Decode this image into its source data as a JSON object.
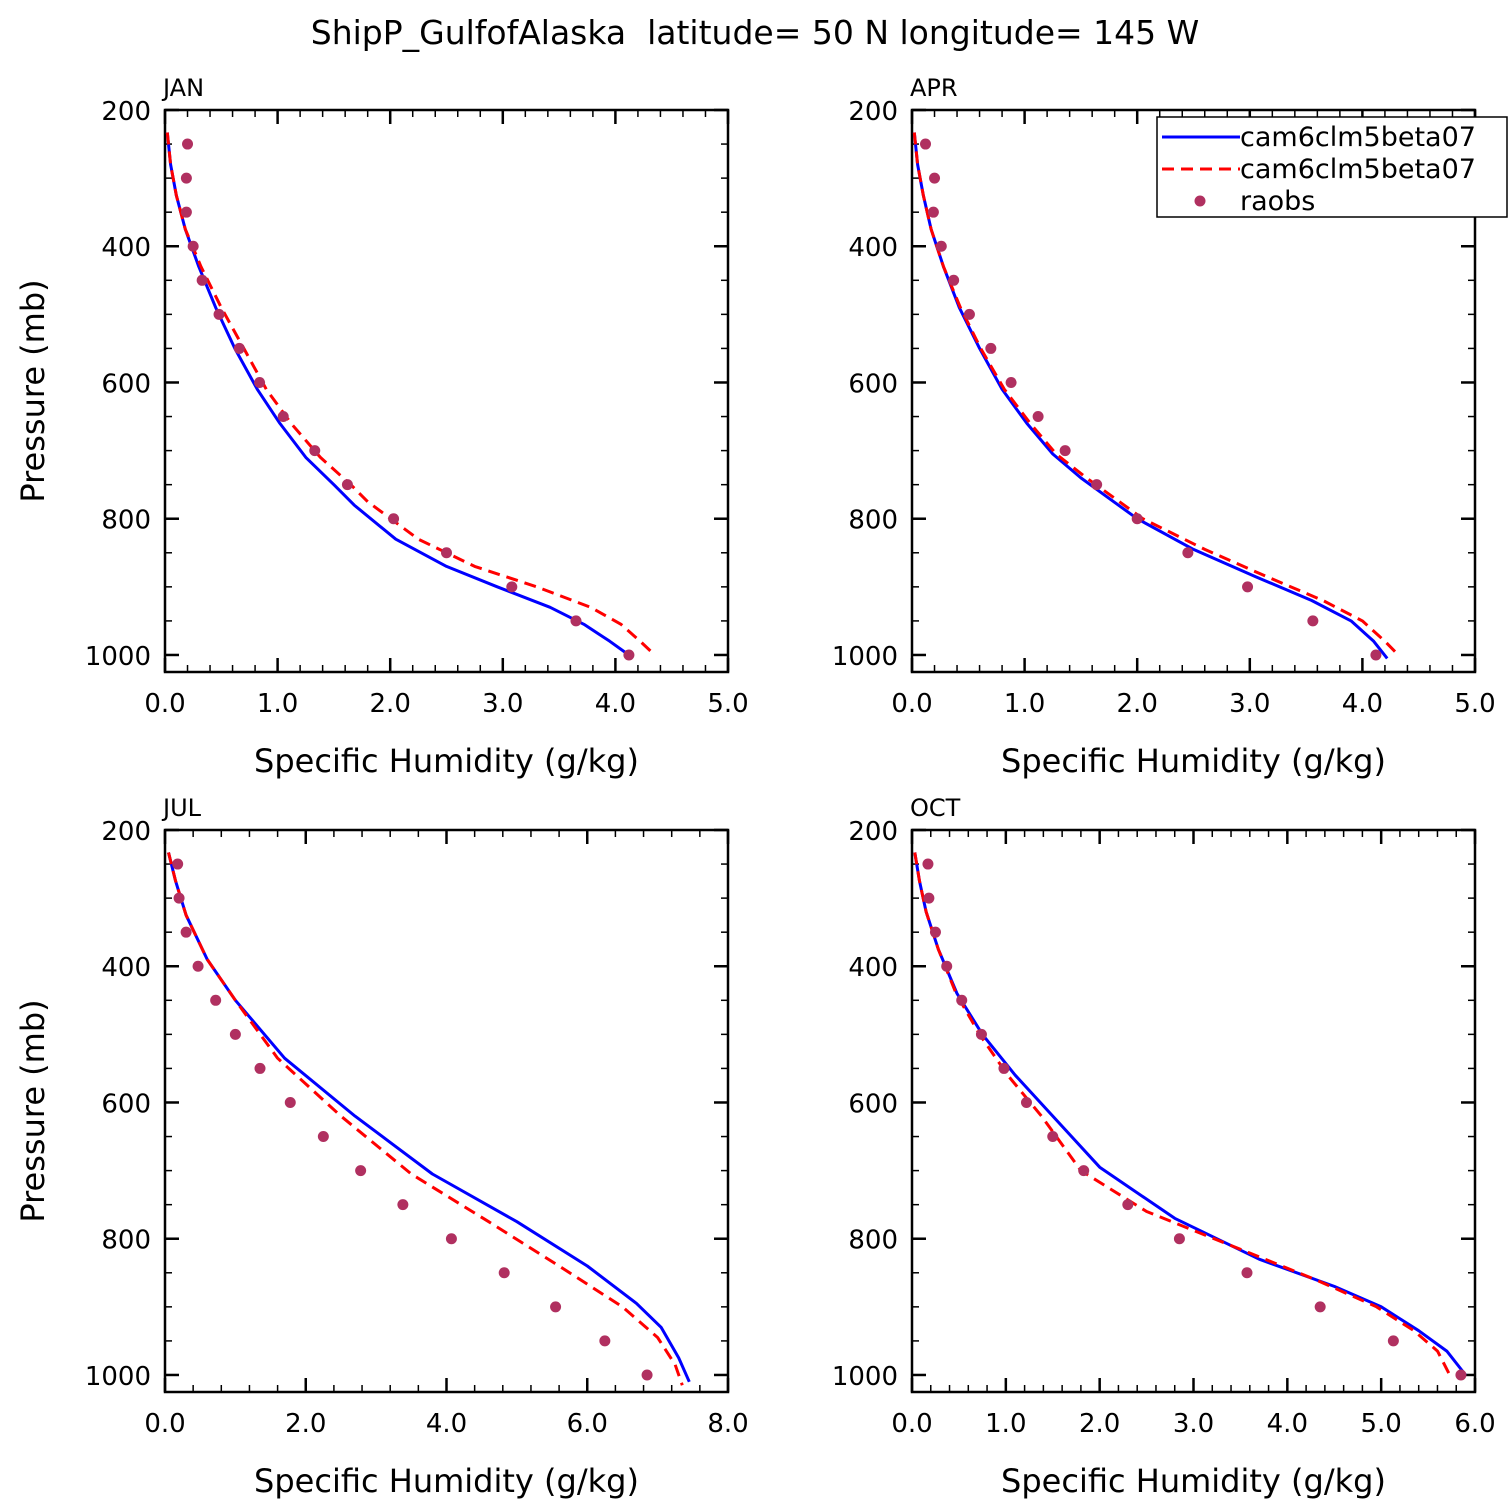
{
  "title": "ShipP_GulfofAlaska  latitude= 50 N longitude= 145 W",
  "legend": {
    "placement": "top-right of APR panel",
    "entries": [
      {
        "label": "cam6clm5beta07",
        "style": "solid",
        "color": "#0000ff"
      },
      {
        "label": "cam6clm5beta07",
        "style": "dashed",
        "color": "#ff0000"
      },
      {
        "label": "raobs",
        "style": "dot",
        "color": "#b03060"
      }
    ]
  },
  "chart_data": [
    {
      "type": "line",
      "title": "JAN",
      "xlabel": "Specific Humidity (g/kg)",
      "ylabel": "Pressure (mb)",
      "xlim": [
        0,
        5
      ],
      "ylim": [
        200,
        1025
      ],
      "y_inverted": true,
      "xticks": [
        "0.0",
        "1.0",
        "2.0",
        "3.0",
        "4.0",
        "5.0"
      ],
      "yticks": [
        "200",
        "400",
        "600",
        "800",
        "1000"
      ],
      "series": [
        {
          "name": "cam6clm5beta07",
          "style": "solid",
          "color": "#0000ff",
          "x": [
            0.02,
            0.05,
            0.1,
            0.18,
            0.3,
            0.45,
            0.62,
            0.82,
            1.02,
            1.25,
            1.5,
            1.68,
            2.05,
            2.5,
            2.95,
            3.42,
            3.72,
            3.95,
            4.12
          ],
          "y": [
            233,
            280,
            325,
            375,
            430,
            490,
            550,
            610,
            660,
            710,
            750,
            780,
            830,
            870,
            900,
            930,
            955,
            980,
            1000
          ]
        },
        {
          "name": "cam6clm5beta07",
          "style": "dashed",
          "color": "#ff0000",
          "x": [
            0.02,
            0.05,
            0.1,
            0.18,
            0.32,
            0.5,
            0.7,
            0.9,
            1.12,
            1.38,
            1.65,
            1.8,
            2.25,
            2.75,
            3.3,
            3.78,
            4.05,
            4.22,
            4.35
          ],
          "y": [
            233,
            280,
            325,
            375,
            430,
            490,
            550,
            610,
            660,
            710,
            750,
            775,
            830,
            870,
            900,
            930,
            955,
            980,
            1000
          ]
        },
        {
          "name": "raobs",
          "style": "dot",
          "color": "#b03060",
          "x": [
            0.2,
            0.19,
            0.19,
            0.25,
            0.33,
            0.48,
            0.66,
            0.84,
            1.05,
            1.33,
            1.62,
            2.03,
            2.5,
            3.08,
            3.65,
            4.12
          ],
          "y": [
            250,
            300,
            350,
            400,
            450,
            500,
            550,
            600,
            650,
            700,
            750,
            800,
            850,
            900,
            950,
            1000
          ]
        }
      ]
    },
    {
      "type": "line",
      "title": "APR",
      "xlabel": "Specific Humidity (g/kg)",
      "ylabel": "",
      "xlim": [
        0,
        5
      ],
      "ylim": [
        200,
        1025
      ],
      "y_inverted": true,
      "xticks": [
        "0.0",
        "1.0",
        "2.0",
        "3.0",
        "4.0",
        "5.0"
      ],
      "yticks": [
        "200",
        "400",
        "600",
        "800",
        "1000"
      ],
      "series": [
        {
          "name": "cam6clm5beta07",
          "style": "solid",
          "color": "#0000ff",
          "x": [
            0.02,
            0.05,
            0.1,
            0.17,
            0.28,
            0.42,
            0.6,
            0.8,
            1.02,
            1.25,
            1.5,
            1.75,
            2.0,
            2.5,
            3.05,
            3.55,
            3.9,
            4.1,
            4.22
          ],
          "y": [
            233,
            280,
            325,
            375,
            430,
            490,
            550,
            610,
            660,
            705,
            740,
            770,
            800,
            845,
            885,
            920,
            950,
            980,
            1005
          ]
        },
        {
          "name": "cam6clm5beta07",
          "style": "dashed",
          "color": "#ff0000",
          "x": [
            0.02,
            0.05,
            0.1,
            0.17,
            0.28,
            0.43,
            0.61,
            0.82,
            1.05,
            1.28,
            1.55,
            1.8,
            2.05,
            2.6,
            3.15,
            3.65,
            4.0,
            4.2,
            4.32
          ],
          "y": [
            233,
            280,
            325,
            375,
            430,
            490,
            550,
            610,
            660,
            705,
            740,
            770,
            800,
            845,
            885,
            920,
            950,
            980,
            1000
          ]
        },
        {
          "name": "raobs",
          "style": "dot",
          "color": "#b03060",
          "x": [
            0.12,
            0.2,
            0.19,
            0.26,
            0.37,
            0.51,
            0.7,
            0.88,
            1.12,
            1.36,
            1.64,
            2.0,
            2.45,
            2.98,
            3.56,
            4.12
          ],
          "y": [
            250,
            300,
            350,
            400,
            450,
            500,
            550,
            600,
            650,
            700,
            750,
            800,
            850,
            900,
            950,
            1000
          ]
        }
      ]
    },
    {
      "type": "line",
      "title": "JUL",
      "xlabel": "Specific Humidity (g/kg)",
      "ylabel": "Pressure (mb)",
      "xlim": [
        0,
        8
      ],
      "ylim": [
        200,
        1025
      ],
      "y_inverted": true,
      "xticks": [
        "0.0",
        "2.0",
        "4.0",
        "6.0",
        "8.0"
      ],
      "yticks": [
        "200",
        "400",
        "600",
        "800",
        "1000"
      ],
      "series": [
        {
          "name": "cam6clm5beta07",
          "style": "solid",
          "color": "#0000ff",
          "x": [
            0.05,
            0.15,
            0.3,
            0.6,
            1.0,
            1.7,
            2.7,
            3.8,
            5.0,
            6.0,
            6.7,
            7.05,
            7.3,
            7.45
          ],
          "y": [
            233,
            275,
            325,
            390,
            450,
            535,
            620,
            705,
            775,
            840,
            895,
            930,
            975,
            1010
          ]
        },
        {
          "name": "cam6clm5beta07",
          "style": "dashed",
          "color": "#ff0000",
          "x": [
            0.05,
            0.15,
            0.3,
            0.6,
            1.0,
            1.6,
            2.5,
            3.5,
            4.6,
            5.6,
            6.5,
            7.0,
            7.25,
            7.35
          ],
          "y": [
            233,
            275,
            325,
            390,
            450,
            535,
            620,
            705,
            775,
            840,
            900,
            945,
            985,
            1015
          ]
        },
        {
          "name": "raobs",
          "style": "dot",
          "color": "#b03060",
          "x": [
            0.18,
            0.2,
            0.3,
            0.47,
            0.72,
            1.0,
            1.35,
            1.78,
            2.25,
            2.78,
            3.38,
            4.07,
            4.82,
            5.55,
            6.25,
            6.85
          ],
          "y": [
            250,
            300,
            350,
            400,
            450,
            500,
            550,
            600,
            650,
            700,
            750,
            800,
            850,
            900,
            950,
            1000
          ]
        }
      ]
    },
    {
      "type": "line",
      "title": "OCT",
      "xlabel": "Specific Humidity (g/kg)",
      "ylabel": "",
      "xlim": [
        0,
        6
      ],
      "ylim": [
        200,
        1025
      ],
      "y_inverted": true,
      "xticks": [
        "0.0",
        "1.0",
        "2.0",
        "3.0",
        "4.0",
        "5.0",
        "6.0"
      ],
      "yticks": [
        "200",
        "400",
        "600",
        "800",
        "1000"
      ],
      "series": [
        {
          "name": "cam6clm5beta07",
          "style": "solid",
          "color": "#0000ff",
          "x": [
            0.03,
            0.08,
            0.15,
            0.28,
            0.48,
            0.75,
            1.1,
            1.5,
            2.0,
            2.8,
            3.7,
            4.5,
            5.0,
            5.4,
            5.7,
            5.9
          ],
          "y": [
            233,
            275,
            320,
            375,
            440,
            500,
            560,
            620,
            695,
            770,
            830,
            870,
            900,
            935,
            965,
            1000
          ]
        },
        {
          "name": "cam6clm5beta07",
          "style": "dashed",
          "color": "#ff0000",
          "x": [
            0.03,
            0.08,
            0.15,
            0.28,
            0.47,
            0.72,
            1.02,
            1.38,
            1.8,
            2.5,
            3.4,
            4.3,
            4.95,
            5.35,
            5.6,
            5.75
          ],
          "y": [
            233,
            275,
            320,
            375,
            440,
            500,
            560,
            620,
            700,
            760,
            810,
            860,
            900,
            935,
            965,
            1005
          ]
        },
        {
          "name": "raobs",
          "style": "dot",
          "color": "#b03060",
          "x": [
            0.17,
            0.18,
            0.25,
            0.37,
            0.53,
            0.74,
            0.98,
            1.22,
            1.5,
            1.83,
            2.3,
            2.85,
            3.57,
            4.35,
            5.13,
            5.85
          ],
          "y": [
            250,
            300,
            350,
            400,
            450,
            500,
            550,
            600,
            650,
            700,
            750,
            800,
            850,
            900,
            950,
            1000
          ]
        }
      ]
    }
  ]
}
